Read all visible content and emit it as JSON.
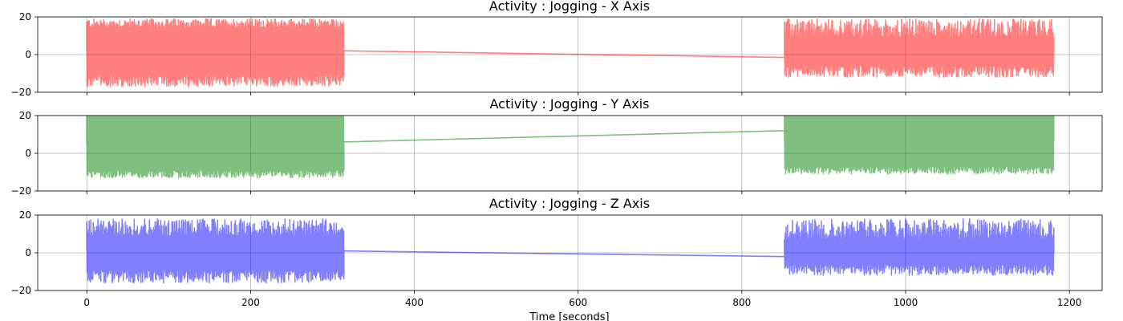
{
  "chart_data": [
    {
      "type": "line",
      "title": "Activity : Jogging - X Axis",
      "xlabel": "",
      "ylabel": "",
      "xlim": [
        -60,
        1240
      ],
      "ylim": [
        -20,
        20
      ],
      "xticks": [
        0,
        200,
        400,
        600,
        800,
        1000,
        1200
      ],
      "yticks": [
        -20,
        0,
        20
      ],
      "grid": true,
      "color": "#ff0000",
      "alpha": 0.5,
      "segments": [
        {
          "x_start": 0,
          "x_end": 314,
          "min_envelope": [
            -17,
            -11
          ],
          "max_envelope": [
            14,
            19
          ],
          "mean": 2
        },
        {
          "x_start": 852,
          "x_end": 1181,
          "min_envelope": [
            -12,
            -6
          ],
          "max_envelope": [
            9,
            19
          ],
          "mean": 1
        }
      ],
      "connector": {
        "x": [
          314,
          852
        ],
        "y": [
          2,
          -1.5
        ]
      }
    },
    {
      "type": "line",
      "title": "Activity : Jogging - Y Axis",
      "xlabel": "",
      "ylabel": "",
      "xlim": [
        -60,
        1240
      ],
      "ylim": [
        -20,
        20
      ],
      "xticks": [
        0,
        200,
        400,
        600,
        800,
        1000,
        1200
      ],
      "yticks": [
        -20,
        0,
        20
      ],
      "grid": true,
      "color": "#008000",
      "alpha": 0.5,
      "segments": [
        {
          "x_start": 0,
          "x_end": 314,
          "min_envelope": [
            -13,
            -9
          ],
          "max_envelope": [
            20,
            20
          ],
          "mean": 5
        },
        {
          "x_start": 852,
          "x_end": 1181,
          "min_envelope": [
            -11,
            -7
          ],
          "max_envelope": [
            20,
            20
          ],
          "mean": 7
        }
      ],
      "connector": {
        "x": [
          314,
          852
        ],
        "y": [
          6,
          12
        ]
      }
    },
    {
      "type": "line",
      "title": "Activity : Jogging - Z Axis",
      "xlabel": "Time [seconds]",
      "ylabel": "",
      "xlim": [
        -60,
        1240
      ],
      "ylim": [
        -20,
        20
      ],
      "xticks": [
        0,
        200,
        400,
        600,
        800,
        1000,
        1200
      ],
      "yticks": [
        -20,
        0,
        20
      ],
      "grid": true,
      "color": "#0000ff",
      "alpha": 0.5,
      "segments": [
        {
          "x_start": 0,
          "x_end": 314,
          "min_envelope": [
            -16,
            -9
          ],
          "max_envelope": [
            9,
            18
          ],
          "mean": 1
        },
        {
          "x_start": 852,
          "x_end": 1181,
          "min_envelope": [
            -12,
            -6
          ],
          "max_envelope": [
            7,
            18
          ],
          "mean": 0
        }
      ],
      "connector": {
        "x": [
          314,
          852
        ],
        "y": [
          1,
          -2
        ]
      }
    }
  ]
}
